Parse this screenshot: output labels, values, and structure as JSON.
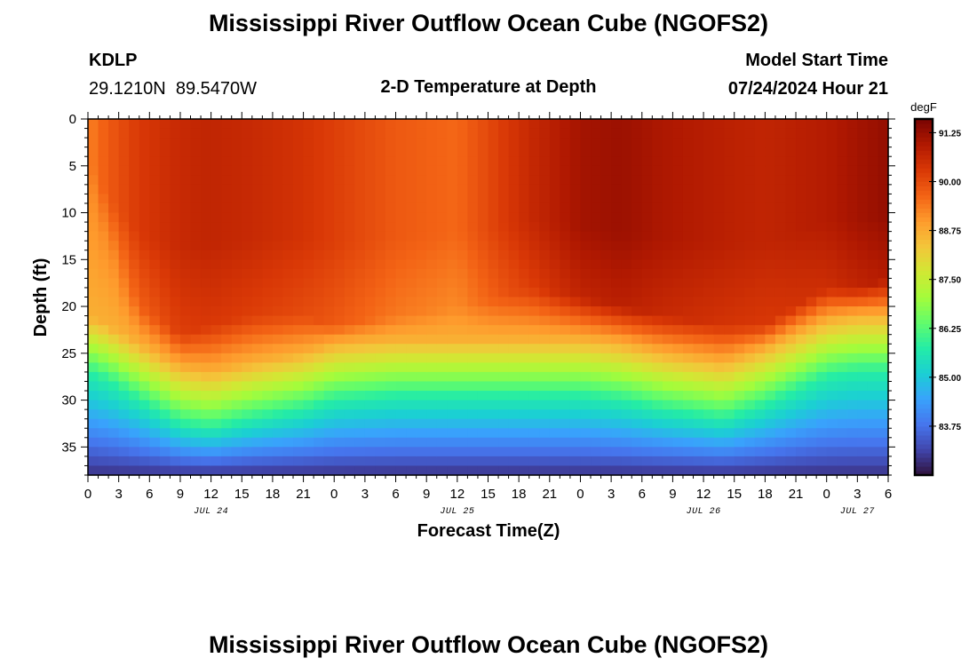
{
  "chart_data": {
    "type": "heatmap",
    "title": "Mississippi River Outflow Ocean Cube (NGOFS2)",
    "footer_title": "Mississippi River Outflow Ocean Cube (NGOFS2)",
    "subtitle": "2-D Temperature at Depth",
    "station": {
      "id": "KDLP",
      "location": "29.1210N  89.5470W"
    },
    "model_start": {
      "label": "Model Start Time",
      "value": "07/24/2024 Hour 21"
    },
    "xlabel": "Forecast Time(Z)",
    "ylabel": "Depth (ft)",
    "x_range_hours": [
      0,
      78
    ],
    "y_range_ft": [
      0,
      38
    ],
    "y_inverted": true,
    "x_tick_labels": [
      "0",
      "3",
      "6",
      "9",
      "12",
      "15",
      "18",
      "21",
      "0",
      "3",
      "6",
      "9",
      "12",
      "15",
      "18",
      "21",
      "0",
      "3",
      "6",
      "9",
      "12",
      "15",
      "18",
      "21",
      "0",
      "3",
      "6"
    ],
    "y_ticks": [
      0,
      5,
      10,
      15,
      20,
      25,
      30,
      35
    ],
    "y_tick_labels": [
      "0",
      "5",
      "10",
      "15",
      "20",
      "25",
      "30",
      "35"
    ],
    "date_labels": [
      {
        "text": "JUL 24",
        "hour": 12
      },
      {
        "text": "JUL 25",
        "hour": 36
      },
      {
        "text": "JUL 26",
        "hour": 60
      },
      {
        "text": "JUL 27",
        "hour": 75
      }
    ],
    "colorbar": {
      "unit": "degF",
      "range": [
        82.5,
        91.6
      ],
      "ticks": [
        91.25,
        90.0,
        88.75,
        87.5,
        86.25,
        85.0,
        83.75
      ],
      "tick_labels": [
        "91.25",
        "90.00",
        "88.75",
        "87.50",
        "86.25",
        "85.00",
        "83.75"
      ],
      "colors": [
        "#30123b",
        "#4145ab",
        "#4675ed",
        "#39a2fc",
        "#1bcfd4",
        "#24eca6",
        "#61fc6c",
        "#a4fc3b",
        "#d1e834",
        "#f3c63a",
        "#fe9b2d",
        "#f36315",
        "#d93806",
        "#b11901",
        "#7a0402"
      ]
    },
    "profiles": {
      "hours": [
        0,
        2,
        5,
        9,
        12,
        16,
        21,
        24,
        30,
        36,
        40,
        43,
        48,
        52,
        56,
        62,
        66,
        69,
        72,
        75,
        78
      ],
      "surface_temp_degF": [
        89.3,
        89.8,
        90.3,
        90.6,
        90.7,
        90.6,
        90.4,
        90.2,
        89.8,
        89.6,
        90.2,
        90.6,
        91.1,
        91.2,
        91.0,
        90.8,
        90.7,
        90.8,
        90.9,
        91.1,
        91.3
      ],
      "warm_layer_depth_ft": [
        7,
        14,
        20,
        23,
        22,
        21,
        21,
        22,
        21,
        20,
        19,
        18,
        19,
        20,
        21,
        22,
        22,
        20,
        18,
        18,
        17
      ],
      "thermocline_depth_ft": [
        24,
        25,
        27,
        29.5,
        30,
        29,
        28,
        27,
        26.5,
        26.5,
        26.5,
        26.5,
        26.5,
        27,
        28,
        29,
        27.5,
        26,
        24.5,
        24,
        24
      ],
      "bottom_temp_degF": 82.9
    },
    "grid": false
  }
}
